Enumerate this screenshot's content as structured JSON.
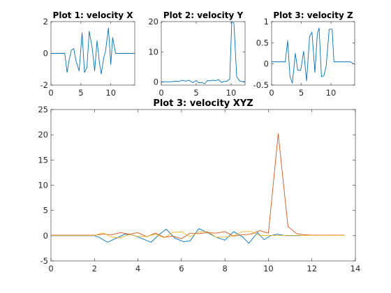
{
  "chart_data": [
    {
      "id": "plot1",
      "type": "line",
      "title": "Plot 1: velocity X",
      "xlim": [
        0,
        14
      ],
      "ylim": [
        -2,
        2
      ],
      "xticks": [
        0,
        5,
        10
      ],
      "yticks": [
        -2,
        0,
        2
      ],
      "series": [
        {
          "color": "#0072BD",
          "x": [
            0,
            0.6,
            1.2,
            1.8,
            2.3,
            2.7,
            3.0,
            3.4,
            3.8,
            4.2,
            4.7,
            5.2,
            5.6,
            6.0,
            6.4,
            6.9,
            7.3,
            7.7,
            8.1,
            8.4,
            8.8,
            9.1,
            9.6,
            10.0,
            10.3,
            10.8,
            11.3,
            12,
            12.6,
            13.2,
            13.8
          ],
          "y": [
            0,
            0,
            0,
            0,
            0,
            -1.2,
            -0.5,
            0.2,
            0.3,
            -0.5,
            -1.1,
            1.3,
            -1.2,
            -0.9,
            1.4,
            0.3,
            -1.1,
            0.8,
            -0.6,
            -1.3,
            -0.3,
            0.1,
            1.6,
            -0.7,
            1.0,
            0,
            0,
            0,
            0,
            0,
            0
          ]
        }
      ]
    },
    {
      "id": "plot2",
      "type": "line",
      "title": "Plot 2: velocity Y",
      "xlim": [
        0,
        12
      ],
      "ylim": [
        -1,
        20
      ],
      "xticks": [
        0,
        5,
        10
      ],
      "yticks": [
        0,
        10,
        20
      ],
      "series": [
        {
          "color": "#0072BD",
          "x": [
            0,
            0.5,
            1.0,
            1.5,
            2.0,
            2.5,
            3.0,
            3.5,
            4.0,
            4.5,
            5.0,
            5.4,
            5.8,
            6.2,
            6.6,
            7.0,
            7.4,
            7.8,
            8.2,
            8.6,
            9.0,
            9.4,
            9.8,
            10.1,
            10.4,
            10.8,
            11.2,
            11.6,
            12.0
          ],
          "y": [
            0.1,
            0.1,
            0.1,
            0.1,
            0.3,
            0.2,
            0.6,
            0.3,
            0.6,
            -0.2,
            0.5,
            -0.3,
            -0.1,
            -0.6,
            0.5,
            0.4,
            0.6,
            0.5,
            0.8,
            -0.1,
            0.2,
            0.3,
            1.0,
            20.2,
            19.5,
            1.8,
            0.4,
            0.2,
            0.1
          ]
        }
      ]
    },
    {
      "id": "plot3",
      "type": "line",
      "title": "Plot 3: velocity Z",
      "xlim": [
        0,
        14
      ],
      "ylim": [
        -0.5,
        1
      ],
      "xticks": [
        0,
        5,
        10
      ],
      "yticks": [
        -0.5,
        0,
        0.5,
        1
      ],
      "series": [
        {
          "color": "#0072BD",
          "x": [
            0,
            0.6,
            1.2,
            1.8,
            2.3,
            2.7,
            3.1,
            3.5,
            4.0,
            4.4,
            4.9,
            5.4,
            5.9,
            6.4,
            6.8,
            7.3,
            7.7,
            8.0,
            8.4,
            8.8,
            9.2,
            9.7,
            10.2,
            10.5,
            11.0,
            11.4,
            11.8,
            12.3,
            12.8,
            13.3,
            13.8
          ],
          "y": [
            0.05,
            0.05,
            0.05,
            0.05,
            0.05,
            0.55,
            -0.3,
            -0.45,
            0.25,
            -0.15,
            -0.15,
            0.3,
            -0.4,
            0.65,
            0.75,
            -0.2,
            0.7,
            0.85,
            -0.3,
            -0.28,
            -0.05,
            0.82,
            0.82,
            0.05,
            0.05,
            0.05,
            0.05,
            0.05,
            0.05,
            0.05,
            0.0
          ]
        }
      ]
    },
    {
      "id": "plot4",
      "type": "line",
      "title": "Plot 3: velocity XYZ",
      "xlim": [
        0,
        14
      ],
      "ylim": [
        -5,
        25
      ],
      "xticks": [
        0,
        2,
        4,
        6,
        8,
        10,
        12,
        14
      ],
      "yticks": [
        -5,
        0,
        5,
        10,
        15,
        20,
        25
      ],
      "series": [
        {
          "color": "#0072BD",
          "x": [
            0,
            1.0,
            2.0,
            2.2,
            2.6,
            3.0,
            3.4,
            3.8,
            4.2,
            4.6,
            5.0,
            5.3,
            5.7,
            6.1,
            6.4,
            6.8,
            7.2,
            7.6,
            8.0,
            8.4,
            8.8,
            9.1,
            9.5,
            9.8,
            10.1,
            10.4,
            10.8,
            11.2,
            11.5
          ],
          "y": [
            0,
            0,
            0,
            -0.3,
            -1.3,
            -0.5,
            0.3,
            0.1,
            -0.6,
            -1.3,
            0.3,
            1.3,
            -0.5,
            -1.2,
            -1.0,
            1.4,
            0.6,
            -0.3,
            -0.9,
            0.8,
            -0.2,
            -1.5,
            0.6,
            -0.8,
            0.0,
            0.3,
            0.0,
            0.0,
            0.0
          ]
        },
        {
          "color": "#D95319",
          "x": [
            0,
            1.0,
            2.0,
            2.4,
            2.8,
            3.2,
            3.6,
            4.0,
            4.4,
            4.8,
            5.2,
            5.6,
            6.0,
            6.4,
            6.8,
            7.2,
            7.6,
            8.0,
            8.4,
            8.8,
            9.2,
            9.6,
            10.0,
            10.45,
            10.9,
            11.3,
            11.6,
            12.0,
            13.5
          ],
          "y": [
            0.1,
            0.1,
            0.1,
            0.3,
            0.2,
            0.6,
            0.3,
            0.6,
            -0.2,
            0.5,
            -0.3,
            -0.1,
            -0.6,
            0.5,
            0.4,
            0.6,
            0.5,
            0.8,
            -0.1,
            0.2,
            0.3,
            1.0,
            0.5,
            20.2,
            1.8,
            0.4,
            0.2,
            0.1,
            0.1
          ]
        },
        {
          "color": "#EDB120",
          "x": [
            0,
            1.0,
            2.0,
            2.4,
            2.8,
            3.2,
            3.6,
            4.0,
            4.4,
            4.8,
            5.2,
            5.6,
            6.0,
            6.4,
            6.8,
            7.2,
            7.6,
            8.0,
            8.4,
            8.8,
            9.2,
            9.6,
            10.0,
            10.4,
            10.8,
            11.2,
            12.0,
            13.5
          ],
          "y": [
            0.05,
            0.05,
            0.05,
            0.55,
            -0.3,
            -0.45,
            0.25,
            -0.15,
            -0.15,
            0.3,
            -0.4,
            0.65,
            0.75,
            -0.2,
            0.7,
            0.85,
            -0.3,
            -0.28,
            -0.05,
            0.82,
            0.82,
            0.05,
            0.05,
            0.05,
            0.05,
            0.05,
            0.05,
            0.05
          ]
        }
      ]
    }
  ]
}
